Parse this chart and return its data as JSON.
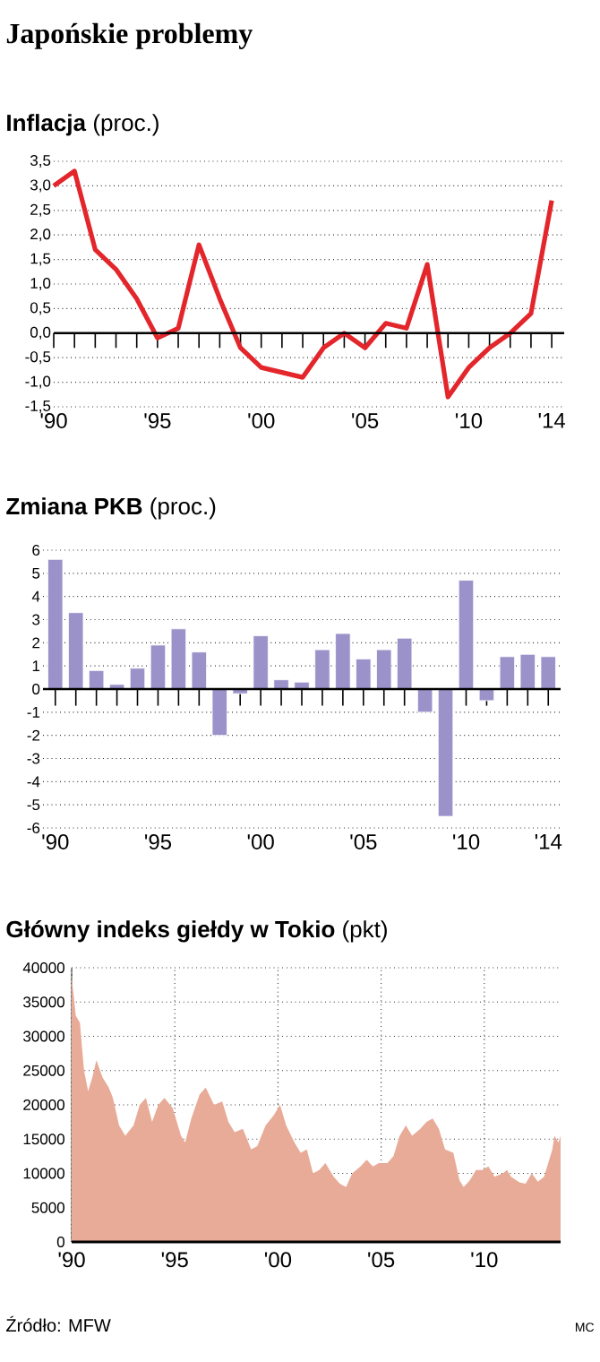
{
  "chart_data": [
    {
      "type": "line",
      "title": "Japońskie problemy",
      "subtitle": "**Inflacja** (proc.)",
      "color": "#e3262b",
      "x": [
        1990,
        1991,
        1992,
        1993,
        1994,
        1995,
        1996,
        1997,
        1998,
        1999,
        2000,
        2001,
        2002,
        2003,
        2004,
        2005,
        2006,
        2007,
        2008,
        2009,
        2010,
        2011,
        2012,
        2013,
        2014
      ],
      "values": [
        3.0,
        3.3,
        1.7,
        1.3,
        0.7,
        -0.1,
        0.1,
        1.8,
        0.7,
        -0.3,
        -0.7,
        -0.8,
        -0.9,
        -0.3,
        0.0,
        -0.3,
        0.2,
        0.1,
        1.4,
        -1.3,
        -0.7,
        -0.3,
        0.0,
        0.4,
        2.7
      ],
      "xlim": [
        1990,
        2014.6
      ],
      "ylim": [
        -1.5,
        3.5
      ],
      "xticks": [
        {
          "value": 1990,
          "label": "'90"
        },
        {
          "value": 1995,
          "label": "'95"
        },
        {
          "value": 2000,
          "label": "'00"
        },
        {
          "value": 2005,
          "label": "'05"
        },
        {
          "value": 2010,
          "label": "'10"
        },
        {
          "value": 2014,
          "label": "'14"
        }
      ],
      "yticks": [
        {
          "value": -1.5,
          "label": "-1,5"
        },
        {
          "value": -1.0,
          "label": "-1,0"
        },
        {
          "value": -0.5,
          "label": "-0,5"
        },
        {
          "value": 0.0,
          "label": "0,0"
        },
        {
          "value": 0.5,
          "label": "0,5"
        },
        {
          "value": 1.0,
          "label": "1,0"
        },
        {
          "value": 1.5,
          "label": "1,5"
        },
        {
          "value": 2.0,
          "label": "2,0"
        },
        {
          "value": 2.5,
          "label": "2,5"
        },
        {
          "value": 3.0,
          "label": "3,0"
        },
        {
          "value": 3.5,
          "label": "3,5"
        }
      ],
      "grid": "y"
    },
    {
      "type": "bar",
      "title": "**Zmiana PKB** (proc.)",
      "color": "#9b92c9",
      "x": [
        1990,
        1991,
        1992,
        1993,
        1994,
        1995,
        1996,
        1997,
        1998,
        1999,
        2000,
        2001,
        2002,
        2003,
        2004,
        2005,
        2006,
        2007,
        2008,
        2009,
        2010,
        2011,
        2012,
        2013,
        2014
      ],
      "values": [
        5.6,
        3.3,
        0.8,
        0.2,
        0.9,
        1.9,
        2.6,
        1.6,
        -2.0,
        -0.2,
        2.3,
        0.4,
        0.3,
        1.7,
        2.4,
        1.3,
        1.7,
        2.2,
        -1.0,
        -5.5,
        4.7,
        -0.5,
        1.4,
        1.5,
        1.4
      ],
      "xlim": [
        1989.4,
        2014.6
      ],
      "ylim": [
        -6,
        6
      ],
      "xticks": [
        {
          "value": 1990,
          "label": "'90"
        },
        {
          "value": 1995,
          "label": "'95"
        },
        {
          "value": 2000,
          "label": "'00"
        },
        {
          "value": 2005,
          "label": "'05"
        },
        {
          "value": 2010,
          "label": "'10"
        },
        {
          "value": 2014,
          "label": "'14"
        }
      ],
      "yticks": [
        -6,
        -5,
        -4,
        -3,
        -2,
        -1,
        0,
        1,
        2,
        3,
        4,
        5,
        6
      ],
      "grid": "y"
    },
    {
      "type": "area",
      "title": "**Główny indeks giełdy w Tokio** (pkt)",
      "color": "#e8ab98",
      "x": [
        1990.0,
        1990.2,
        1990.4,
        1990.6,
        1990.8,
        1991.0,
        1991.2,
        1991.5,
        1991.8,
        1992.0,
        1992.3,
        1992.6,
        1993.0,
        1993.3,
        1993.6,
        1993.9,
        1994.2,
        1994.5,
        1994.9,
        1995.3,
        1995.5,
        1995.8,
        1996.2,
        1996.5,
        1996.9,
        1997.3,
        1997.6,
        1997.9,
        1998.3,
        1998.7,
        1999.0,
        1999.4,
        1999.8,
        2000.1,
        2000.4,
        2000.8,
        2001.1,
        2001.4,
        2001.7,
        2002.0,
        2002.3,
        2002.7,
        2003.0,
        2003.3,
        2003.6,
        2004.0,
        2004.3,
        2004.6,
        2004.9,
        2005.3,
        2005.6,
        2005.9,
        2006.2,
        2006.5,
        2006.9,
        2007.2,
        2007.5,
        2007.8,
        2008.1,
        2008.5,
        2008.8,
        2009.0,
        2009.3,
        2009.6,
        2009.9,
        2010.2,
        2010.5,
        2010.9,
        2011.1,
        2011.3,
        2011.7,
        2012.0,
        2012.3,
        2012.6,
        2012.9,
        2013.1,
        2013.3,
        2013.4,
        2013.6,
        2013.7
      ],
      "values": [
        38900,
        33000,
        32000,
        25000,
        22000,
        24000,
        26500,
        24000,
        22500,
        21000,
        17000,
        15500,
        17000,
        20000,
        21000,
        17500,
        20000,
        21000,
        19500,
        15500,
        14500,
        18000,
        21500,
        22500,
        20000,
        20500,
        17500,
        16000,
        16500,
        13500,
        14000,
        17000,
        18500,
        20000,
        17000,
        14500,
        13000,
        13500,
        10000,
        10500,
        11500,
        9500,
        8500,
        8000,
        10000,
        11000,
        12000,
        11000,
        11500,
        11500,
        12500,
        15500,
        17000,
        15500,
        16500,
        17500,
        18000,
        16500,
        13500,
        13000,
        9000,
        8000,
        9000,
        10500,
        10500,
        11000,
        9500,
        10000,
        10500,
        9500,
        8700,
        8500,
        10000,
        8800,
        9500,
        11500,
        13500,
        15500,
        14500,
        15500
      ],
      "xlim": [
        1990,
        2013.7
      ],
      "ylim": [
        0,
        40000
      ],
      "xticks": [
        {
          "value": 1990,
          "label": "'90"
        },
        {
          "value": 1995,
          "label": "'95"
        },
        {
          "value": 2000,
          "label": "'00"
        },
        {
          "value": 2005,
          "label": "'05"
        },
        {
          "value": 2010,
          "label": "'10"
        }
      ],
      "yticks": [
        0,
        5000,
        10000,
        15000,
        20000,
        25000,
        30000,
        35000,
        40000
      ],
      "grid": true,
      "annotations": [
        "Źródło: MFW",
        "MC"
      ]
    }
  ]
}
